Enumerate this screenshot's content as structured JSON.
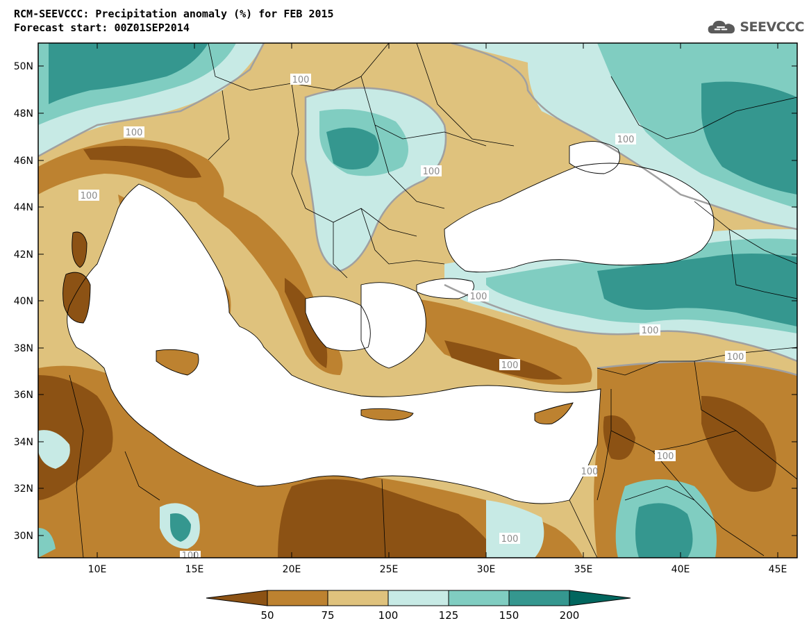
{
  "header": {
    "title": "RCM-SEEVCCC: Precipitation anomaly (%) for FEB 2015",
    "subtitle": "Forecast start: 00Z01SEP2014"
  },
  "logo": {
    "text": "SEEVCCC",
    "icon": "cloud-logo-icon"
  },
  "map": {
    "region": "Eastern Mediterranean / Black Sea",
    "lat_ticks": [
      "50N",
      "48N",
      "46N",
      "44N",
      "42N",
      "40N",
      "38N",
      "36N",
      "34N",
      "32N",
      "30N"
    ],
    "lon_ticks": [
      "10E",
      "15E",
      "20E",
      "25E",
      "30E",
      "35E",
      "40E",
      "45E"
    ],
    "contour_labels": [
      "100",
      "100",
      "100",
      "100",
      "100",
      "100",
      "100",
      "100",
      "100",
      "100",
      "100",
      "100",
      "100"
    ],
    "colors": {
      "lt50": "#8c5214",
      "50_75": "#bd8230",
      "75_100": "#dfc27d",
      "100_125": "#c7eae5",
      "125_150": "#80cdc1",
      "150_200": "#35978f",
      "gt200": "#01665e",
      "sea": "#ffffff"
    }
  },
  "colorbar": {
    "ticks": [
      "50",
      "75",
      "100",
      "125",
      "150",
      "200"
    ],
    "colors": [
      "#8c5214",
      "#bd8230",
      "#dfc27d",
      "#c7eae5",
      "#80cdc1",
      "#35978f",
      "#01665e"
    ]
  }
}
